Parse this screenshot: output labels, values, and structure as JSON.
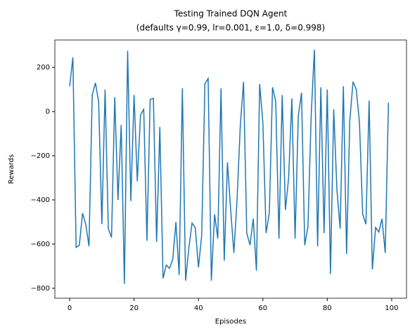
{
  "chart_data": {
    "type": "line",
    "title": "Testing Trained DQN Agent",
    "subtitle": "(defaults γ=0.99, lr=0.001, ε=1.0, δ=0.998)",
    "x_label": "Episodes",
    "y_label": "Rewards",
    "x": [
      0,
      1,
      2,
      3,
      4,
      5,
      6,
      7,
      8,
      9,
      10,
      11,
      12,
      13,
      14,
      15,
      16,
      17,
      18,
      19,
      20,
      21,
      22,
      23,
      24,
      25,
      26,
      27,
      28,
      29,
      30,
      31,
      32,
      33,
      34,
      35,
      36,
      37,
      38,
      39,
      40,
      41,
      42,
      43,
      44,
      45,
      46,
      47,
      48,
      49,
      50,
      51,
      52,
      53,
      54,
      55,
      56,
      57,
      58,
      59,
      60,
      61,
      62,
      63,
      64,
      65,
      66,
      67,
      68,
      69,
      70,
      71,
      72,
      73,
      74,
      75,
      76,
      77,
      78,
      79,
      80,
      81,
      82,
      83,
      84,
      85,
      86,
      87,
      88,
      89,
      90,
      91,
      92,
      93,
      94,
      95,
      96,
      97,
      98,
      99
    ],
    "series": [
      {
        "name": "Rewards",
        "color": "#1f77b4",
        "values": [
          115,
          245,
          -615,
          -605,
          -460,
          -510,
          -610,
          75,
          130,
          45,
          -510,
          100,
          -530,
          -570,
          65,
          -400,
          -60,
          -780,
          275,
          -405,
          75,
          -315,
          -15,
          10,
          -585,
          55,
          60,
          -590,
          -70,
          -755,
          -695,
          -710,
          -670,
          -500,
          -740,
          105,
          -765,
          -620,
          -505,
          -525,
          -705,
          -560,
          125,
          150,
          -765,
          -465,
          -575,
          105,
          -675,
          -230,
          -445,
          -640,
          -395,
          -60,
          135,
          -550,
          -605,
          -485,
          -720,
          125,
          -50,
          -550,
          -460,
          110,
          45,
          -575,
          75,
          -445,
          -300,
          60,
          -575,
          -20,
          85,
          -605,
          -520,
          -20,
          280,
          -610,
          110,
          -550,
          100,
          -735,
          10,
          -355,
          -530,
          115,
          -645,
          -40,
          135,
          100,
          -50,
          -465,
          -510,
          50,
          -715,
          -525,
          -545,
          -485,
          -640,
          40
        ]
      }
    ],
    "xlim": [
      -4.6,
      104.6
    ],
    "ylim": [
      -845,
      324
    ],
    "xticks": [
      0,
      20,
      40,
      60,
      80,
      100
    ],
    "yticks": [
      {
        "value": -800,
        "label": "−800"
      },
      {
        "value": -600,
        "label": "−600"
      },
      {
        "value": -400,
        "label": "−400"
      },
      {
        "value": -200,
        "label": "−200"
      },
      0,
      200
    ]
  }
}
